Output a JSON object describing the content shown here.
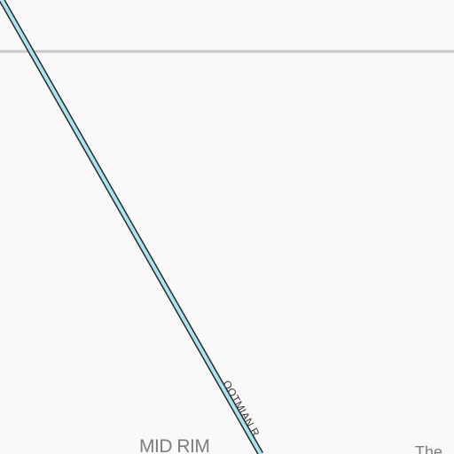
{
  "map": {
    "background_color": "#f9f9f9",
    "boundary_line_color": "#c8c8c8",
    "road_casing_color": "#2a2a2a",
    "road_fill_color": "#a9e3ee",
    "labels": {
      "area": "MID RIM",
      "road": "OOTMIAN R",
      "place_partial": "The "
    }
  }
}
